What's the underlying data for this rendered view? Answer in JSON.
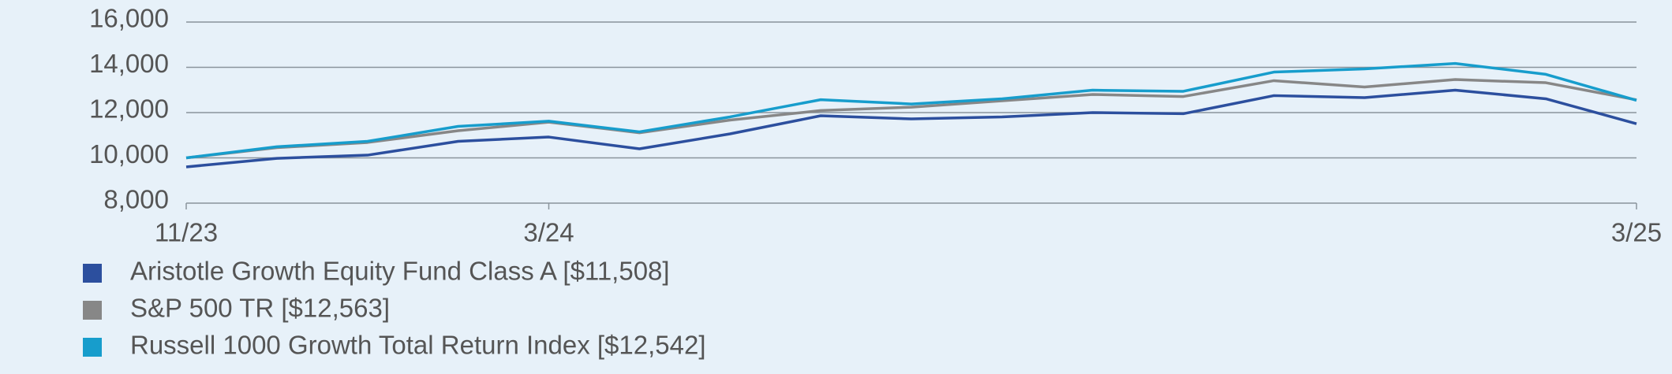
{
  "chart_data": {
    "type": "line",
    "categories": [
      "11/23",
      null,
      null,
      null,
      "3/24",
      null,
      null,
      null,
      null,
      null,
      null,
      null,
      null,
      null,
      null,
      null,
      "3/25"
    ],
    "series": [
      {
        "name": "Aristotle Growth Equity Fund Class A [$11,508]",
        "color": "#2c4f9e",
        "values": [
          9600,
          9980,
          10120,
          10730,
          10920,
          10400,
          11060,
          11860,
          11720,
          11810,
          12000,
          11950,
          12750,
          12660,
          12990,
          12610,
          11508
        ]
      },
      {
        "name": "S&P 500 TR [$12,563]",
        "color": "#878787",
        "values": [
          10000,
          10450,
          10680,
          11200,
          11580,
          11110,
          11670,
          12090,
          12240,
          12520,
          12800,
          12710,
          13410,
          13130,
          13460,
          13320,
          12563
        ]
      },
      {
        "name": "Russell 1000 Growth Total Return Index [$12,542]",
        "color": "#179dcc",
        "values": [
          10000,
          10490,
          10730,
          11390,
          11620,
          11150,
          11810,
          12570,
          12380,
          12610,
          12990,
          12940,
          13790,
          13930,
          14170,
          13690,
          12542
        ]
      }
    ],
    "ylim": [
      8000,
      16000
    ],
    "yticks": [
      {
        "value": 8000,
        "label": "8,000"
      },
      {
        "value": 10000,
        "label": "10,000"
      },
      {
        "value": 12000,
        "label": "12,000"
      },
      {
        "value": 14000,
        "label": "14,000"
      },
      {
        "value": 16000,
        "label": "16,000"
      }
    ],
    "grid": true
  }
}
